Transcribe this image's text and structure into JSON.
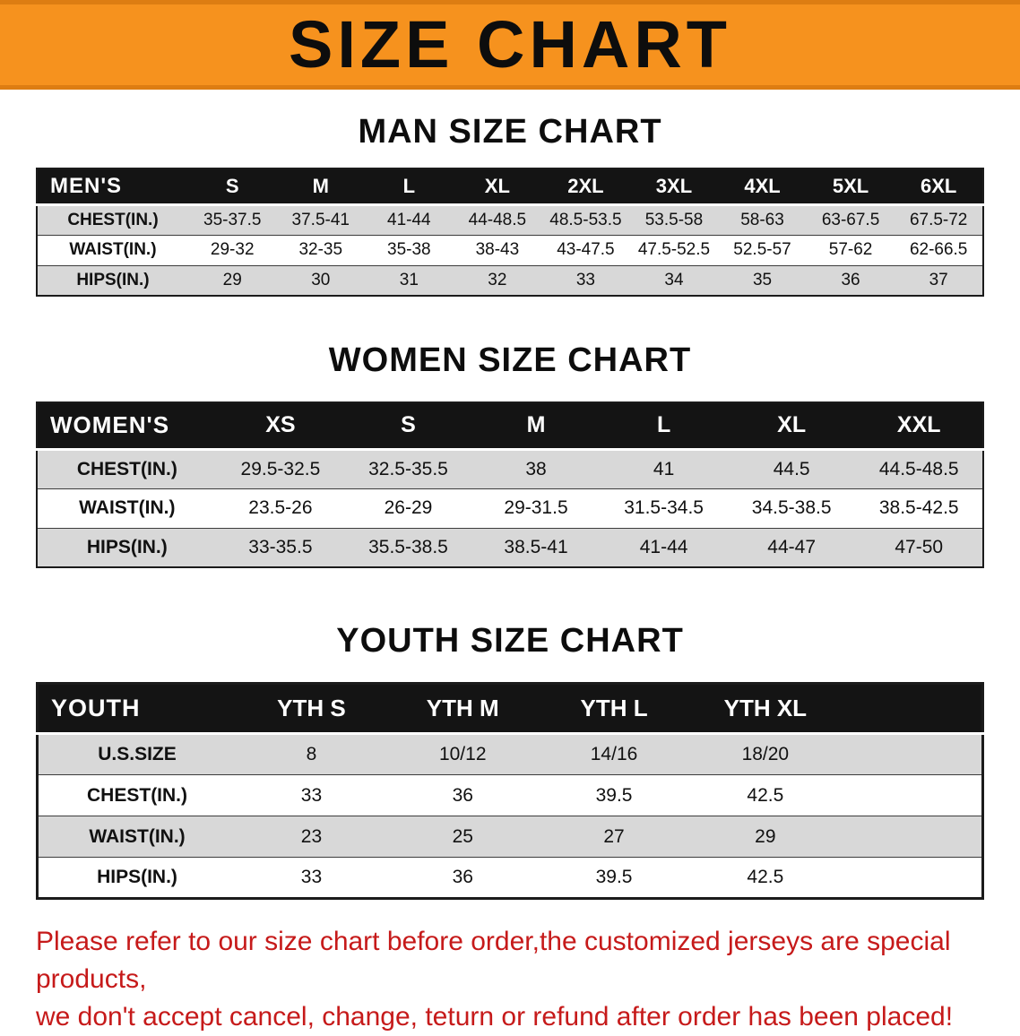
{
  "colors": {
    "banner-bg": "#F6921E",
    "banner-edge": "#DD7D12",
    "header-black": "#141414",
    "row-gray": "#D8D8D8",
    "note-red": "#C61A1A"
  },
  "banner": {
    "title": "SIZE CHART"
  },
  "tables": [
    {
      "id": "men",
      "heading": "MAN SIZE CHART",
      "corner": "MEN'S",
      "columns": [
        "S",
        "M",
        "L",
        "XL",
        "2XL",
        "3XL",
        "4XL",
        "5XL",
        "6XL"
      ],
      "rows": [
        {
          "label": "CHEST(IN.)",
          "values": [
            "35-37.5",
            "37.5-41",
            "41-44",
            "44-48.5",
            "48.5-53.5",
            "53.5-58",
            "58-63",
            "63-67.5",
            "67.5-72"
          ]
        },
        {
          "label": "WAIST(IN.)",
          "values": [
            "29-32",
            "32-35",
            "35-38",
            "38-43",
            "43-47.5",
            "47.5-52.5",
            "52.5-57",
            "57-62",
            "62-66.5"
          ]
        },
        {
          "label": "HIPS(IN.)",
          "values": [
            "29",
            "30",
            "31",
            "32",
            "33",
            "34",
            "35",
            "36",
            "37"
          ]
        }
      ],
      "trailing_blank": false
    },
    {
      "id": "women",
      "heading": "WOMEN SIZE CHART",
      "corner": "WOMEN'S",
      "columns": [
        "XS",
        "S",
        "M",
        "L",
        "XL",
        "XXL"
      ],
      "rows": [
        {
          "label": "CHEST(IN.)",
          "values": [
            "29.5-32.5",
            "32.5-35.5",
            "38",
            "41",
            "44.5",
            "44.5-48.5"
          ]
        },
        {
          "label": "WAIST(IN.)",
          "values": [
            "23.5-26",
            "26-29",
            "29-31.5",
            "31.5-34.5",
            "34.5-38.5",
            "38.5-42.5"
          ]
        },
        {
          "label": "HIPS(IN.)",
          "values": [
            "33-35.5",
            "35.5-38.5",
            "38.5-41",
            "41-44",
            "44-47",
            "47-50"
          ]
        }
      ],
      "trailing_blank": false
    },
    {
      "id": "youth",
      "heading": "YOUTH SIZE CHART",
      "corner": "YOUTH",
      "columns": [
        "YTH S",
        "YTH M",
        "YTH L",
        "YTH XL"
      ],
      "rows": [
        {
          "label": "U.S.SIZE",
          "values": [
            "8",
            "10/12",
            "14/16",
            "18/20"
          ]
        },
        {
          "label": "CHEST(IN.)",
          "values": [
            "33",
            "36",
            "39.5",
            "42.5"
          ]
        },
        {
          "label": "WAIST(IN.)",
          "values": [
            "23",
            "25",
            "27",
            "29"
          ]
        },
        {
          "label": "HIPS(IN.)",
          "values": [
            "33",
            "36",
            "39.5",
            "42.5"
          ]
        }
      ],
      "trailing_blank": true
    }
  ],
  "note": {
    "line1": "Please refer to our size chart before order,the customized jerseys are special products,",
    "line2": "we don't accept cancel, change, teturn or refund after order has been placed!"
  }
}
